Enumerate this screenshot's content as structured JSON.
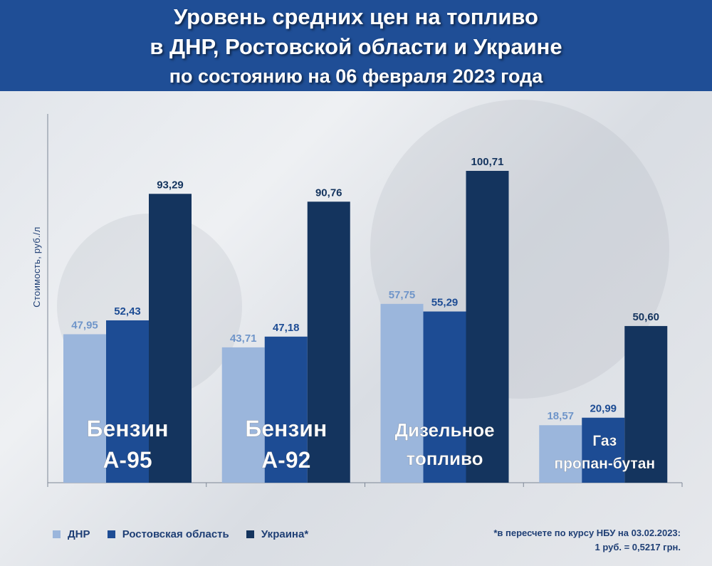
{
  "header": {
    "line1": "Уровень средних цен на топливо",
    "line2": "в ДНР, Ростовской области и Украине",
    "line3": "по состоянию на 06 февраля 2023 года"
  },
  "colors": {
    "header_bg": "#1f4e96",
    "dnr": "#9bb6dc",
    "rostov": "#1d4c94",
    "ukraine": "#14345e"
  },
  "chart_data": {
    "type": "bar",
    "categories": [
      "Бензин А-95",
      "Бензин А-92",
      "Дизельное топливо",
      "Газ пропан-бутан"
    ],
    "category_lines": [
      [
        "Бензин",
        "А-95"
      ],
      [
        "Бензин",
        "А-92"
      ],
      [
        "Дизельное",
        "топливо"
      ],
      [
        "Газ",
        "пропан-бутан"
      ]
    ],
    "series": [
      {
        "name": "ДНР",
        "values": [
          47.95,
          43.71,
          57.75,
          18.57
        ],
        "labels": [
          "47,95",
          "43,71",
          "57,75",
          "18,57"
        ],
        "color": "#9bb6dc"
      },
      {
        "name": "Ростовская область",
        "values": [
          52.43,
          47.18,
          55.29,
          20.99
        ],
        "labels": [
          "52,43",
          "47,18",
          "55,29",
          "20,99"
        ],
        "color": "#1d4c94"
      },
      {
        "name": "Украина*",
        "values": [
          93.29,
          90.76,
          100.71,
          50.6
        ],
        "labels": [
          "93,29",
          "90,76",
          "100,71",
          "50,60"
        ],
        "color": "#14345e"
      }
    ],
    "ylabel": "Стоимость, руб./л",
    "ylim": [
      0,
      110
    ],
    "grid": false,
    "legend_position": "bottom-left"
  },
  "legend": {
    "dnr": "ДНР",
    "rostov": "Ростовская область",
    "ukraine": "Украина*"
  },
  "note": {
    "line1": "*в пересчете по курсу НБУ на 03.02.2023:",
    "line2": "1 руб. = 0,5217 грн."
  }
}
